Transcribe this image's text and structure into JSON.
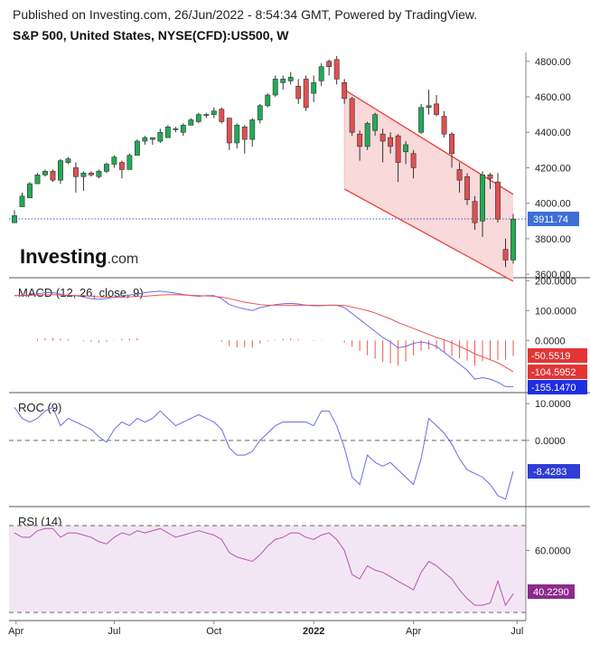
{
  "header": {
    "published": "Published on Investing.com, 26/Jun/2022 - 8:54:34 GMT, Powered by TradingView.",
    "symbol": "S&P 500, United States, NYSE(CFD):US500, W"
  },
  "logo": {
    "brand": "Investing",
    "suffix": ".com"
  },
  "colors": {
    "up": "#22aa55",
    "down": "#e05050",
    "channel_line": "#e84040",
    "channel_fill": "#f9d9d9",
    "macd_line": "#6b6bea",
    "signal_line": "#ee5555",
    "roc_line": "#6b6bea",
    "rsi_line": "#b455b5",
    "rsi_band": "#f3e6f4",
    "price_tag": "#3d6fd6",
    "macd_tag": "#e33535",
    "signal_tag": "#e33535",
    "histo_tag": "#1f2fe0",
    "roc_tag": "#2f3cd6",
    "rsi_tag": "#8c2a8c"
  },
  "chart_data": [
    {
      "type": "candlestick",
      "title": "S&P 500, United States, NYSE(CFD):US500, W",
      "x_ticks": [
        "Apr",
        "Jul",
        "Oct",
        "2022",
        "Apr",
        "Jul"
      ],
      "y_ticks": [
        "3600.00",
        "3800.00",
        "4000.00",
        "4200.00",
        "4400.00",
        "4600.00",
        "4800.00"
      ],
      "ylim": [
        3580,
        4850
      ],
      "last_value": "3911.74",
      "candles": [
        [
          3890,
          3930,
          3890,
          3960
        ],
        [
          3980,
          4040,
          3980,
          4060
        ],
        [
          4030,
          4110,
          4030,
          4120
        ],
        [
          4110,
          4160,
          4110,
          4170
        ],
        [
          4160,
          4180,
          4150,
          4190
        ],
        [
          4180,
          4130,
          4120,
          4190
        ],
        [
          4130,
          4240,
          4110,
          4250
        ],
        [
          4230,
          4250,
          4220,
          4260
        ],
        [
          4200,
          4150,
          4060,
          4230
        ],
        [
          4150,
          4170,
          4070,
          4180
        ],
        [
          4170,
          4160,
          4150,
          4180
        ],
        [
          4150,
          4180,
          4140,
          4190
        ],
        [
          4180,
          4220,
          4170,
          4230
        ],
        [
          4220,
          4260,
          4200,
          4270
        ],
        [
          4230,
          4190,
          4140,
          4240
        ],
        [
          4190,
          4270,
          4190,
          4280
        ],
        [
          4270,
          4350,
          4270,
          4360
        ],
        [
          4350,
          4370,
          4330,
          4380
        ],
        [
          4360,
          4370,
          4330,
          4370
        ],
        [
          4350,
          4400,
          4340,
          4420
        ],
        [
          4370,
          4430,
          4370,
          4440
        ],
        [
          4420,
          4420,
          4400,
          4430
        ],
        [
          4400,
          4440,
          4380,
          4450
        ],
        [
          4440,
          4470,
          4440,
          4480
        ],
        [
          4460,
          4500,
          4450,
          4510
        ],
        [
          4500,
          4500,
          4480,
          4510
        ],
        [
          4500,
          4520,
          4480,
          4540
        ],
        [
          4530,
          4460,
          4450,
          4540
        ],
        [
          4480,
          4340,
          4300,
          4480
        ],
        [
          4340,
          4440,
          4310,
          4450
        ],
        [
          4430,
          4360,
          4280,
          4440
        ],
        [
          4360,
          4470,
          4320,
          4480
        ],
        [
          4470,
          4550,
          4450,
          4560
        ],
        [
          4550,
          4610,
          4540,
          4620
        ],
        [
          4610,
          4700,
          4600,
          4720
        ],
        [
          4680,
          4700,
          4640,
          4720
        ],
        [
          4690,
          4710,
          4670,
          4740
        ],
        [
          4660,
          4590,
          4560,
          4700
        ],
        [
          4700,
          4540,
          4520,
          4720
        ],
        [
          4620,
          4680,
          4570,
          4720
        ],
        [
          4690,
          4770,
          4660,
          4790
        ],
        [
          4800,
          4770,
          4720,
          4810
        ],
        [
          4810,
          4700,
          4670,
          4830
        ],
        [
          4680,
          4590,
          4560,
          4700
        ],
        [
          4590,
          4400,
          4380,
          4600
        ],
        [
          4390,
          4320,
          4240,
          4410
        ],
        [
          4320,
          4450,
          4300,
          4460
        ],
        [
          4410,
          4500,
          4380,
          4510
        ],
        [
          4390,
          4350,
          4230,
          4420
        ],
        [
          4370,
          4320,
          4280,
          4400
        ],
        [
          4380,
          4230,
          4120,
          4390
        ],
        [
          4290,
          4330,
          4220,
          4350
        ],
        [
          4280,
          4200,
          4140,
          4300
        ],
        [
          4400,
          4540,
          4390,
          4560
        ],
        [
          4540,
          4550,
          4500,
          4640
        ],
        [
          4560,
          4500,
          4490,
          4610
        ],
        [
          4490,
          4390,
          4370,
          4520
        ],
        [
          4390,
          4280,
          4200,
          4400
        ],
        [
          4190,
          4130,
          4060,
          4230
        ],
        [
          4150,
          4020,
          3990,
          4170
        ],
        [
          4010,
          3890,
          3850,
          4040
        ],
        [
          3900,
          4160,
          3810,
          4180
        ],
        [
          4160,
          4140,
          4080,
          4170
        ],
        [
          4120,
          3910,
          3890,
          4170
        ],
        [
          3740,
          3680,
          3640,
          3800
        ],
        [
          3680,
          3910,
          3660,
          3940
        ]
      ],
      "channel": {
        "upper": [
          [
            43,
            4640
          ],
          [
            65,
            4050
          ]
        ],
        "lower": [
          [
            43,
            4080
          ],
          [
            65,
            3560
          ]
        ]
      }
    },
    {
      "type": "line",
      "title": "MACD (12, 26, close, 9)",
      "y_ticks": [
        "200.0000",
        "100.0000",
        "0.0000"
      ],
      "ylim": [
        -175,
        210
      ],
      "series": [
        {
          "values": [
            150,
            150,
            152,
            156,
            160,
            160,
            155,
            150,
            150,
            145,
            140,
            138,
            140,
            145,
            150,
            152,
            155,
            160,
            163,
            165,
            162,
            158,
            154,
            150,
            148,
            150,
            150,
            140,
            120,
            112,
            105,
            100,
            110,
            115,
            120,
            123,
            124,
            122,
            118,
            116,
            116,
            118,
            118,
            110,
            90,
            70,
            50,
            30,
            10,
            -5,
            -25,
            -20,
            -10,
            -5,
            -10,
            -20,
            -40,
            -60,
            -80,
            -100,
            -130,
            -125,
            -130,
            -140,
            -155,
            -155
          ]
        },
        {
          "values": [
            150,
            150,
            151,
            152,
            153,
            153,
            152,
            151,
            150,
            150,
            148,
            146,
            145,
            144,
            145,
            146,
            147,
            148,
            150,
            152,
            153,
            153,
            152,
            151,
            150,
            149,
            148,
            145,
            140,
            134,
            128,
            124,
            120,
            118,
            118,
            118,
            118,
            118,
            118,
            118,
            117,
            118,
            118,
            117,
            112,
            106,
            100,
            92,
            82,
            72,
            60,
            50,
            40,
            30,
            20,
            10,
            2,
            -8,
            -20,
            -32,
            -45,
            -55,
            -65,
            -75,
            -90,
            -105
          ]
        }
      ],
      "histogram": [
        0,
        0,
        0,
        5,
        8,
        8,
        6,
        4,
        0,
        -3,
        -5,
        -7,
        -5,
        -1,
        5,
        6,
        8,
        0,
        0,
        0,
        0,
        0,
        0,
        0,
        0,
        0,
        0,
        -5,
        -20,
        -24,
        -23,
        -24,
        -10,
        -3,
        2,
        5,
        6,
        4,
        0,
        -2,
        -1,
        0,
        0,
        -7,
        -22,
        -36,
        -50,
        -62,
        -72,
        -77,
        -85,
        -70,
        -50,
        -35,
        -30,
        -30,
        -42,
        -52,
        -60,
        -68,
        -85,
        -70,
        -65,
        -65,
        -65,
        -52
      ],
      "tags": [
        "-50.5519",
        "-104.5952",
        "-155.1470"
      ]
    },
    {
      "type": "line",
      "title": "ROC (9)",
      "y_ticks": [
        "10.0000",
        "0.0000"
      ],
      "ylim": [
        -18,
        13
      ],
      "series": [
        {
          "values": [
            9,
            6,
            5,
            6,
            8,
            9,
            4,
            6,
            5,
            4,
            3,
            1,
            -0.5,
            3,
            5,
            4,
            6,
            5,
            6,
            8,
            6,
            4,
            5,
            6,
            7,
            6,
            5,
            3,
            -2,
            -4,
            -4,
            -3,
            0,
            2,
            4,
            5,
            5,
            5,
            5,
            4,
            8,
            8,
            4,
            -2,
            -10,
            -12,
            -4,
            -6,
            -7,
            -6,
            -8,
            -10,
            -12,
            -5,
            6,
            4,
            2,
            -1,
            -5,
            -8,
            -9,
            -10,
            -12,
            -15,
            -16,
            -8.4
          ]
        }
      ],
      "tags": [
        "-8.4283"
      ]
    },
    {
      "type": "line",
      "title": "RSI (14)",
      "y_ticks": [
        "60.0000"
      ],
      "ylim": [
        28,
        80
      ],
      "series": [
        {
          "values": [
            68,
            66,
            66,
            69,
            70,
            70,
            66,
            68,
            68,
            67,
            66,
            64,
            63,
            66,
            68,
            67,
            69,
            68,
            69,
            70,
            68,
            66,
            67,
            68,
            69,
            68,
            67,
            65,
            59,
            57,
            56,
            55,
            58,
            62,
            65,
            66,
            68,
            68,
            66,
            65,
            67,
            68,
            65,
            60,
            49,
            47,
            53,
            51,
            50,
            48,
            46,
            44,
            42,
            50,
            55,
            53,
            50,
            47,
            42,
            38,
            35,
            35,
            36,
            46,
            35,
            40.2
          ]
        }
      ],
      "tags": [
        "40.2290"
      ]
    }
  ]
}
